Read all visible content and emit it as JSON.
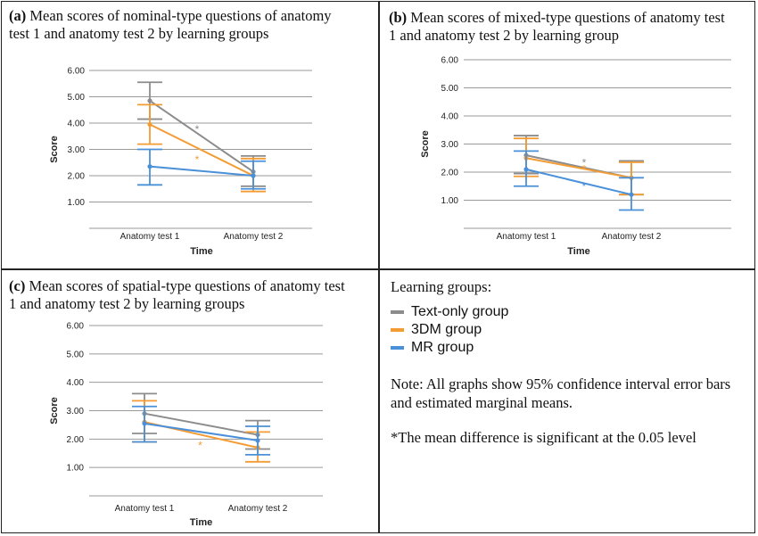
{
  "panels": [
    {
      "label": "(a)",
      "title": "Mean scores of nominal-type questions of anatomy test 1 and anatomy test 2 by learning groups",
      "line1": "Mean scores of nominal-type questions of anatomy",
      "line2": "test 1 and anatomy test 2 by learning groups"
    },
    {
      "label": "(b)",
      "title": "Mean scores of mixed-type questions of anatomy test 1 and anatomy test 2 by learning group",
      "line1": "Mean scores of mixed-type questions of anatomy test",
      "line2": "1 and anatomy test 2 by learning group"
    },
    {
      "label": "(c)",
      "title": "Mean scores of spatial-type questions of anatomy test 1 and anatomy test 2 by learning groups",
      "line1": "Mean scores of spatial-type questions of anatomy test",
      "line2": "1 and anatomy test 2 by learning groups"
    }
  ],
  "colors": {
    "text_only": "#8c8c8c",
    "three_dm": "#f39c34",
    "mr": "#4a90d9",
    "grid": "#9a9a9a"
  },
  "legend": {
    "heading": "Learning groups:",
    "items": [
      {
        "label": "Text-only group",
        "color": "#8c8c8c"
      },
      {
        "label": "3DM group",
        "color": "#f39c34"
      },
      {
        "label": "MR group",
        "color": "#4a90d9"
      }
    ]
  },
  "note_line1": "Note: All graphs show 95% confidence interval error bars",
  "note_line2": "and estimated marginal means.",
  "significance_note": "*The mean difference is significant at the 0.05 level",
  "chart_data": [
    {
      "type": "line",
      "title": "(a) Mean scores of nominal-type questions of anatomy test 1 and anatomy test 2 by learning groups",
      "xlabel": "Time",
      "ylabel": "Score",
      "categories": [
        "Anatomy test 1",
        "Anatomy test 2"
      ],
      "ylim": [
        0,
        6
      ],
      "yticks": [
        "1.00",
        "2.00",
        "3.00",
        "4.00",
        "5.00",
        "6.00"
      ],
      "grid": true,
      "series": [
        {
          "name": "Text-only group",
          "values": [
            4.85,
            2.15
          ],
          "ci_low": [
            4.15,
            1.6
          ],
          "ci_high": [
            5.55,
            2.75
          ]
        },
        {
          "name": "3DM group",
          "values": [
            3.95,
            2.0
          ],
          "ci_low": [
            3.2,
            1.4
          ],
          "ci_high": [
            4.7,
            2.65
          ]
        },
        {
          "name": "MR group",
          "values": [
            2.35,
            2.0
          ],
          "ci_low": [
            1.65,
            1.5
          ],
          "ci_high": [
            3.0,
            2.55
          ]
        }
      ],
      "annotations": [
        {
          "text": "*",
          "series": "Text-only group"
        },
        {
          "text": "*",
          "series": "3DM group"
        }
      ]
    },
    {
      "type": "line",
      "title": "(b) Mean scores of mixed-type questions of anatomy test 1 and anatomy test 2 by learning group",
      "xlabel": "Time",
      "ylabel": "Score",
      "categories": [
        "Anatomy test 1",
        "Anatomy test 2"
      ],
      "ylim": [
        0,
        6
      ],
      "yticks": [
        "1.00",
        "2.00",
        "3.00",
        "4.00",
        "5.00",
        "6.00"
      ],
      "grid": true,
      "series": [
        {
          "name": "Text-only group",
          "values": [
            2.6,
            1.8
          ],
          "ci_low": [
            1.95,
            1.2
          ],
          "ci_high": [
            3.3,
            2.4
          ]
        },
        {
          "name": "3DM group",
          "values": [
            2.5,
            1.8
          ],
          "ci_low": [
            1.85,
            1.2
          ],
          "ci_high": [
            3.2,
            2.35
          ]
        },
        {
          "name": "MR group",
          "values": [
            2.1,
            1.2
          ],
          "ci_low": [
            1.5,
            0.65
          ],
          "ci_high": [
            2.75,
            1.8
          ]
        }
      ],
      "annotations": [
        {
          "text": "*",
          "series": "Text-only group"
        },
        {
          "text": "*",
          "series": "3DM group"
        },
        {
          "text": "*",
          "series": "MR group"
        }
      ]
    },
    {
      "type": "line",
      "title": "(c) Mean scores of spatial-type questions of anatomy test 1 and anatomy test 2 by learning groups",
      "xlabel": "Time",
      "ylabel": "Score",
      "categories": [
        "Anatomy test 1",
        "Anatomy test 2"
      ],
      "ylim": [
        0,
        6
      ],
      "yticks": [
        "1.00",
        "2.00",
        "3.00",
        "4.00",
        "5.00",
        "6.00"
      ],
      "grid": true,
      "series": [
        {
          "name": "Text-only group",
          "values": [
            2.9,
            2.15
          ],
          "ci_low": [
            2.2,
            1.65
          ],
          "ci_high": [
            3.6,
            2.65
          ]
        },
        {
          "name": "3DM group",
          "values": [
            2.6,
            1.7
          ],
          "ci_low": [
            1.9,
            1.2
          ],
          "ci_high": [
            3.35,
            2.25
          ]
        },
        {
          "name": "MR group",
          "values": [
            2.55,
            1.95
          ],
          "ci_low": [
            1.9,
            1.45
          ],
          "ci_high": [
            3.15,
            2.45
          ]
        }
      ],
      "annotations": [
        {
          "text": "*",
          "series": "3DM group"
        }
      ]
    }
  ]
}
